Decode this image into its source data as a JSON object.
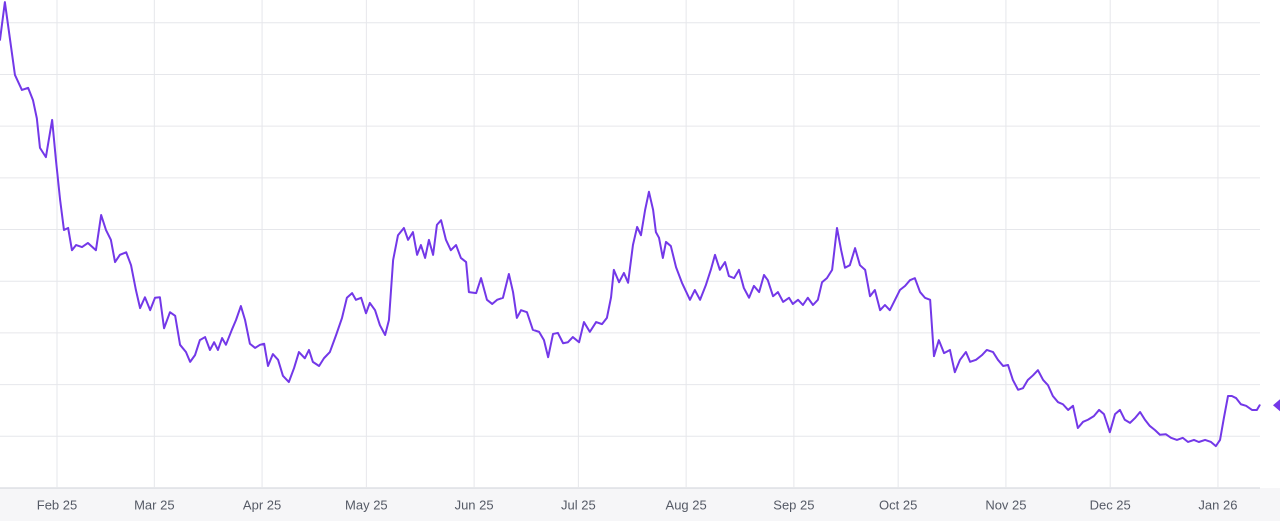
{
  "chart_data": {
    "type": "line",
    "color": "#7338e8",
    "grid": true,
    "xlim": [
      -16.4,
      346.1
    ],
    "ylim": [
      0,
      9.44
    ],
    "yticks": [
      0,
      1,
      2,
      3,
      4,
      5,
      6,
      7,
      8,
      9
    ],
    "xticks": [
      {
        "value": 0,
        "label": "Feb 25"
      },
      {
        "value": 28,
        "label": "Mar 25"
      },
      {
        "value": 59,
        "label": "Apr 25"
      },
      {
        "value": 89,
        "label": "May 25"
      },
      {
        "value": 120,
        "label": "Jun 25"
      },
      {
        "value": 150,
        "label": "Jul 25"
      },
      {
        "value": 181,
        "label": "Aug 25"
      },
      {
        "value": 212,
        "label": "Sep 25"
      },
      {
        "value": 242,
        "label": "Oct 25"
      },
      {
        "value": 273,
        "label": "Nov 25"
      },
      {
        "value": 303,
        "label": "Dec 25"
      },
      {
        "value": 334,
        "label": "Jan 26"
      }
    ],
    "x": [
      -16.4,
      -15.0,
      -13.5,
      -12.1,
      -10.1,
      -8.3,
      -6.9,
      -5.8,
      -4.9,
      -3.2,
      -1.4,
      -0.3,
      0.9,
      2.0,
      3.2,
      4.3,
      5.5,
      7.2,
      8.9,
      11.2,
      12.7,
      14.1,
      15.5,
      16.7,
      18.1,
      19.9,
      21.3,
      22.7,
      23.9,
      25.3,
      26.8,
      28.2,
      29.6,
      30.8,
      32.5,
      34.0,
      35.4,
      37.1,
      38.3,
      39.7,
      41.1,
      42.6,
      44.0,
      45.2,
      46.3,
      47.5,
      48.6,
      50.3,
      51.5,
      52.9,
      54.1,
      55.5,
      57.0,
      58.4,
      59.6,
      60.7,
      62.1,
      63.6,
      65.0,
      66.7,
      68.2,
      69.6,
      71.3,
      72.5,
      73.6,
      75.4,
      76.8,
      78.5,
      80.3,
      82.0,
      83.4,
      84.9,
      86.0,
      87.5,
      88.9,
      90.0,
      91.5,
      92.9,
      94.4,
      95.5,
      96.7,
      98.1,
      99.8,
      101.0,
      102.4,
      103.6,
      104.7,
      105.9,
      107.0,
      108.2,
      109.3,
      110.5,
      111.9,
      113.3,
      114.8,
      116.2,
      117.7,
      118.5,
      120.6,
      122.0,
      123.7,
      125.2,
      126.6,
      128.3,
      130.0,
      131.2,
      132.3,
      133.5,
      135.2,
      136.9,
      138.7,
      140.1,
      141.3,
      142.7,
      144.1,
      145.6,
      147.0,
      148.4,
      150.2,
      151.6,
      153.3,
      155.1,
      156.8,
      158.2,
      159.4,
      160.2,
      161.7,
      163.1,
      164.3,
      165.7,
      166.9,
      168.0,
      169.2,
      170.3,
      171.5,
      172.3,
      173.2,
      174.3,
      175.2,
      176.6,
      178.1,
      179.8,
      182.1,
      183.5,
      185.0,
      186.7,
      188.1,
      189.3,
      190.7,
      192.2,
      193.3,
      194.8,
      196.2,
      197.6,
      199.1,
      200.5,
      202.0,
      203.4,
      204.5,
      206.0,
      207.4,
      208.9,
      210.6,
      211.7,
      213.2,
      214.6,
      216.0,
      217.5,
      218.9,
      220.1,
      221.5,
      223.0,
      224.4,
      225.6,
      226.7,
      228.1,
      229.6,
      231.0,
      232.5,
      233.9,
      235.3,
      236.8,
      238.2,
      239.6,
      241.1,
      242.5,
      244.0,
      245.4,
      246.8,
      248.3,
      249.7,
      251.2,
      252.3,
      253.7,
      255.2,
      256.9,
      258.3,
      259.8,
      261.5,
      262.7,
      264.4,
      266.1,
      267.5,
      269.3,
      270.7,
      272.2,
      273.6,
      275.0,
      276.5,
      277.9,
      279.3,
      280.8,
      282.2,
      283.7,
      285.1,
      286.5,
      288.0,
      289.4,
      290.9,
      292.3,
      293.7,
      295.2,
      296.6,
      298.3,
      299.8,
      301.2,
      302.9,
      304.4,
      305.8,
      307.2,
      308.7,
      310.1,
      311.6,
      313.0,
      314.4,
      315.9,
      317.3,
      319.0,
      320.5,
      322.2,
      323.9,
      325.4,
      327.1,
      328.5,
      330.3,
      332.0,
      333.4,
      334.6,
      335.7,
      336.9,
      338.0,
      339.2,
      340.6,
      342.1,
      343.8,
      345.2,
      346.0
    ],
    "values": [
      8.67,
      9.4,
      8.67,
      7.99,
      7.7,
      7.74,
      7.5,
      7.15,
      6.58,
      6.4,
      7.12,
      6.34,
      5.57,
      4.99,
      5.03,
      4.6,
      4.7,
      4.66,
      4.74,
      4.6,
      5.28,
      4.99,
      4.8,
      4.37,
      4.51,
      4.56,
      4.31,
      3.83,
      3.48,
      3.69,
      3.44,
      3.68,
      3.69,
      3.09,
      3.4,
      3.33,
      2.77,
      2.63,
      2.44,
      2.57,
      2.86,
      2.92,
      2.67,
      2.82,
      2.67,
      2.9,
      2.77,
      3.06,
      3.25,
      3.52,
      3.25,
      2.79,
      2.71,
      2.77,
      2.79,
      2.36,
      2.59,
      2.48,
      2.17,
      2.05,
      2.32,
      2.63,
      2.51,
      2.67,
      2.44,
      2.36,
      2.51,
      2.63,
      2.96,
      3.29,
      3.68,
      3.77,
      3.64,
      3.68,
      3.38,
      3.58,
      3.44,
      3.15,
      2.96,
      3.25,
      4.41,
      4.89,
      5.03,
      4.8,
      4.95,
      4.51,
      4.7,
      4.45,
      4.8,
      4.51,
      5.09,
      5.18,
      4.8,
      4.6,
      4.7,
      4.45,
      4.37,
      3.79,
      3.77,
      4.06,
      3.64,
      3.56,
      3.64,
      3.68,
      4.14,
      3.79,
      3.29,
      3.44,
      3.4,
      3.06,
      3.02,
      2.86,
      2.53,
      2.98,
      3.0,
      2.8,
      2.82,
      2.92,
      2.82,
      3.21,
      3.02,
      3.21,
      3.17,
      3.29,
      3.69,
      4.22,
      3.98,
      4.16,
      3.97,
      4.7,
      5.05,
      4.89,
      5.38,
      5.73,
      5.38,
      4.95,
      4.84,
      4.45,
      4.76,
      4.68,
      4.27,
      3.97,
      3.64,
      3.83,
      3.64,
      3.93,
      4.22,
      4.51,
      4.22,
      4.37,
      4.1,
      4.06,
      4.22,
      3.87,
      3.68,
      3.91,
      3.79,
      4.12,
      4.02,
      3.71,
      3.79,
      3.6,
      3.68,
      3.56,
      3.64,
      3.54,
      3.68,
      3.54,
      3.64,
      3.98,
      4.06,
      4.22,
      5.03,
      4.6,
      4.26,
      4.31,
      4.64,
      4.31,
      4.22,
      3.71,
      3.83,
      3.44,
      3.54,
      3.44,
      3.64,
      3.83,
      3.91,
      4.02,
      4.06,
      3.79,
      3.68,
      3.64,
      2.55,
      2.86,
      2.61,
      2.67,
      2.24,
      2.48,
      2.63,
      2.44,
      2.48,
      2.57,
      2.67,
      2.63,
      2.48,
      2.36,
      2.38,
      2.09,
      1.9,
      1.93,
      2.09,
      2.18,
      2.28,
      2.09,
      1.99,
      1.78,
      1.66,
      1.62,
      1.51,
      1.59,
      1.16,
      1.28,
      1.32,
      1.39,
      1.51,
      1.43,
      1.08,
      1.43,
      1.51,
      1.32,
      1.26,
      1.35,
      1.47,
      1.32,
      1.2,
      1.12,
      1.03,
      1.04,
      0.97,
      0.93,
      0.97,
      0.89,
      0.93,
      0.89,
      0.93,
      0.89,
      0.81,
      0.93,
      1.35,
      1.78,
      1.78,
      1.74,
      1.62,
      1.59,
      1.51,
      1.51,
      1.6
    ]
  }
}
